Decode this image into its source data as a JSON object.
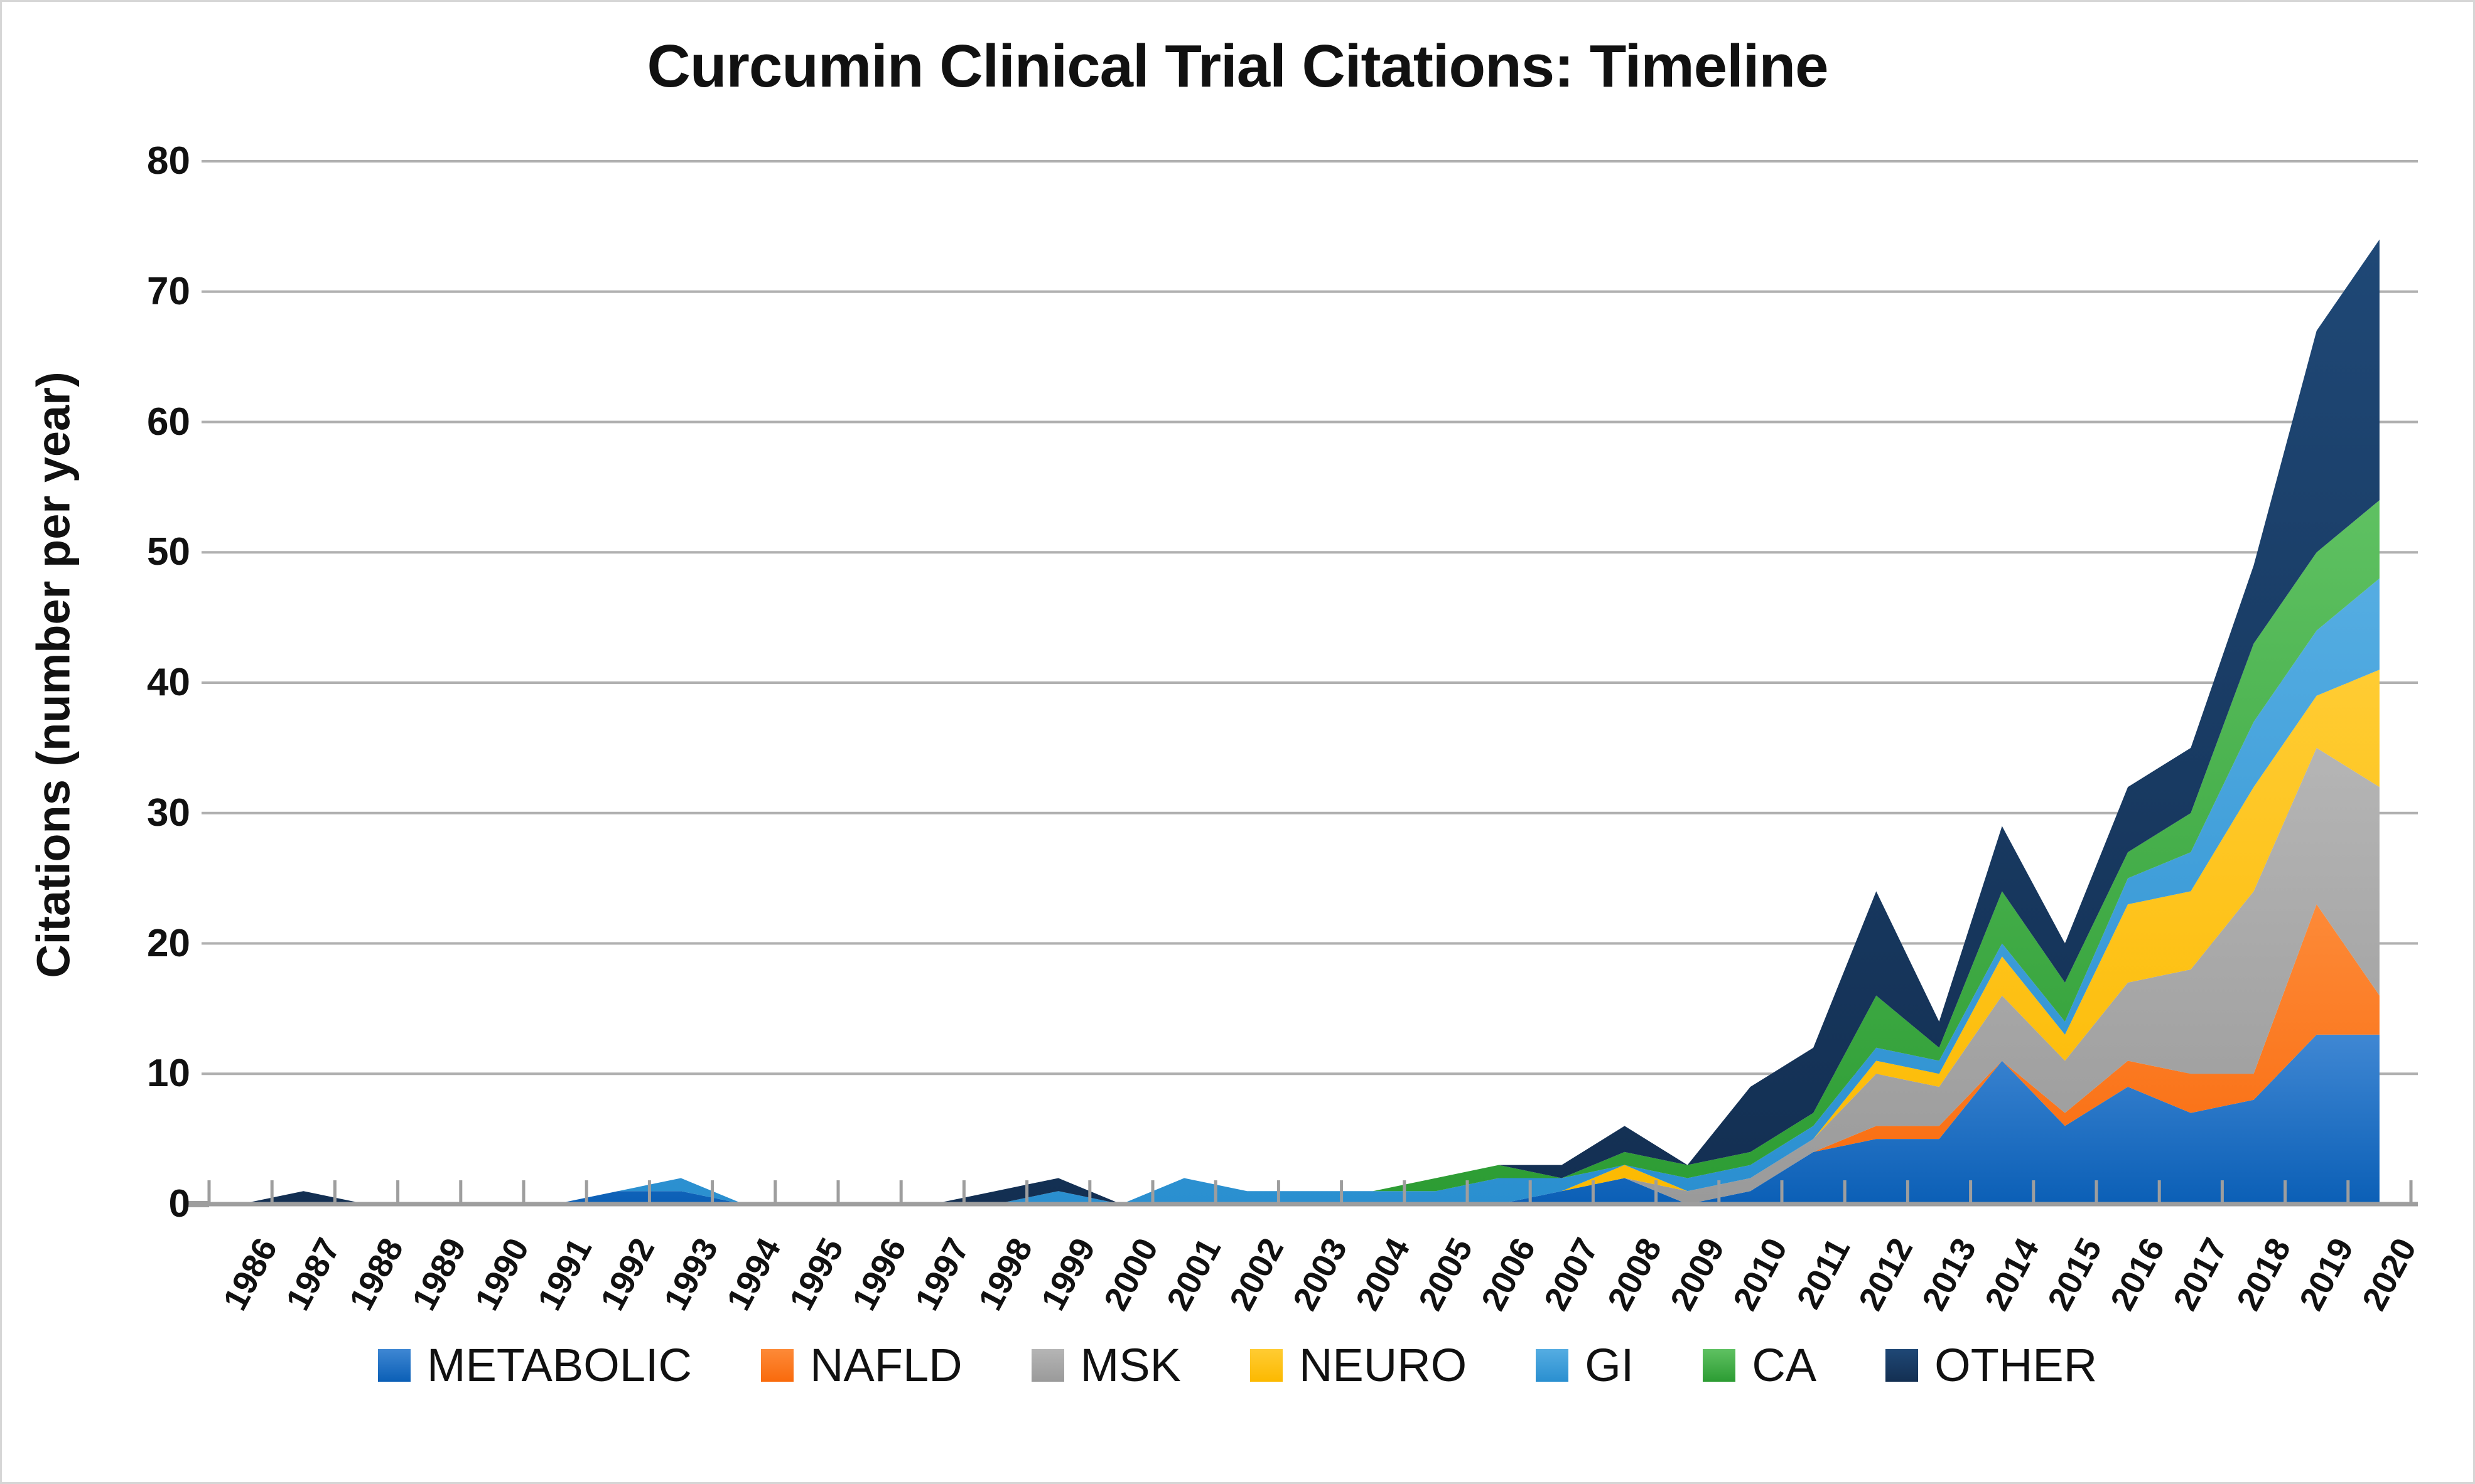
{
  "title": "Curcumin Clinical Trial Citations: Timeline",
  "y_axis": {
    "label": "Citations (number per year)",
    "min": 0,
    "max": 80,
    "step": 10
  },
  "chart_data": {
    "type": "area",
    "stacked": true,
    "grid": true,
    "legend_position": "bottom",
    "title": "Curcumin Clinical Trial Citations: Timeline",
    "xlabel": "",
    "ylabel": "Citations (number per year)",
    "ylim": [
      0,
      80
    ],
    "categories": [
      1986,
      1987,
      1988,
      1989,
      1990,
      1991,
      1992,
      1993,
      1994,
      1995,
      1996,
      1997,
      1998,
      1999,
      2000,
      2001,
      2002,
      2003,
      2004,
      2005,
      2006,
      2007,
      2008,
      2009,
      2010,
      2011,
      2012,
      2013,
      2014,
      2015,
      2016,
      2017,
      2018,
      2019,
      2020
    ],
    "series": [
      {
        "name": "METABOLIC",
        "color_top": "#3f87d3",
        "color_bottom": "#0b5fb6",
        "values": [
          0,
          0,
          0,
          0,
          0,
          0,
          1,
          1,
          0,
          0,
          0,
          0,
          0,
          0,
          0,
          0,
          0,
          0,
          0,
          0,
          0,
          1,
          2,
          0,
          1,
          4,
          5,
          5,
          11,
          6,
          9,
          7,
          8,
          13,
          13
        ]
      },
      {
        "name": "NAFLD",
        "color_top": "#fd8a38",
        "color_bottom": "#f96a0c",
        "values": [
          0,
          0,
          0,
          0,
          0,
          0,
          0,
          0,
          0,
          0,
          0,
          0,
          0,
          0,
          0,
          0,
          0,
          0,
          0,
          0,
          0,
          0,
          0,
          0,
          0,
          0,
          1,
          1,
          0,
          1,
          2,
          3,
          2,
          10,
          3
        ]
      },
      {
        "name": "MSK",
        "color_top": "#b5b5b5",
        "color_bottom": "#9a9a9a",
        "values": [
          0,
          0,
          0,
          0,
          0,
          0,
          0,
          0,
          0,
          0,
          0,
          0,
          0,
          0,
          0,
          0,
          0,
          0,
          0,
          0,
          0,
          0,
          0,
          1,
          1,
          1,
          4,
          3,
          5,
          4,
          6,
          8,
          14,
          12,
          16
        ]
      },
      {
        "name": "NEURO",
        "color_top": "#ffcc33",
        "color_bottom": "#fcb900",
        "values": [
          0,
          0,
          0,
          0,
          0,
          0,
          0,
          0,
          0,
          0,
          0,
          0,
          0,
          0,
          0,
          0,
          0,
          0,
          0,
          0,
          0,
          0,
          1,
          0,
          0,
          0,
          1,
          1,
          3,
          2,
          6,
          6,
          8,
          4,
          9
        ]
      },
      {
        "name": "GI",
        "color_top": "#55ade2",
        "color_bottom": "#2a8fd0",
        "values": [
          0,
          0,
          0,
          0,
          0,
          0,
          0,
          1,
          0,
          0,
          0,
          0,
          0,
          1,
          0,
          2,
          1,
          1,
          1,
          1,
          2,
          1,
          0,
          1,
          1,
          1,
          1,
          1,
          1,
          1,
          2,
          3,
          5,
          5,
          7
        ]
      },
      {
        "name": "CA",
        "color_top": "#5fc162",
        "color_bottom": "#2c9c33",
        "values": [
          0,
          0,
          0,
          0,
          0,
          0,
          0,
          0,
          0,
          0,
          0,
          0,
          0,
          0,
          0,
          0,
          0,
          0,
          0,
          1,
          1,
          0,
          1,
          1,
          1,
          1,
          4,
          1,
          4,
          3,
          2,
          3,
          6,
          6,
          6
        ]
      },
      {
        "name": "OTHER",
        "color_top": "#1f4876",
        "color_bottom": "#132f52",
        "values": [
          0,
          1,
          0,
          0,
          0,
          0,
          0,
          0,
          0,
          0,
          0,
          0,
          1,
          1,
          0,
          0,
          0,
          0,
          0,
          0,
          0,
          1,
          2,
          0,
          5,
          5,
          8,
          2,
          5,
          3,
          5,
          5,
          6,
          17,
          20
        ]
      }
    ]
  },
  "colors": {
    "gridline": "#b0b0b0",
    "axis_line": "#9e9e9e",
    "tick": "#9e9e9e",
    "text": "#111111",
    "background": "#ffffff"
  }
}
